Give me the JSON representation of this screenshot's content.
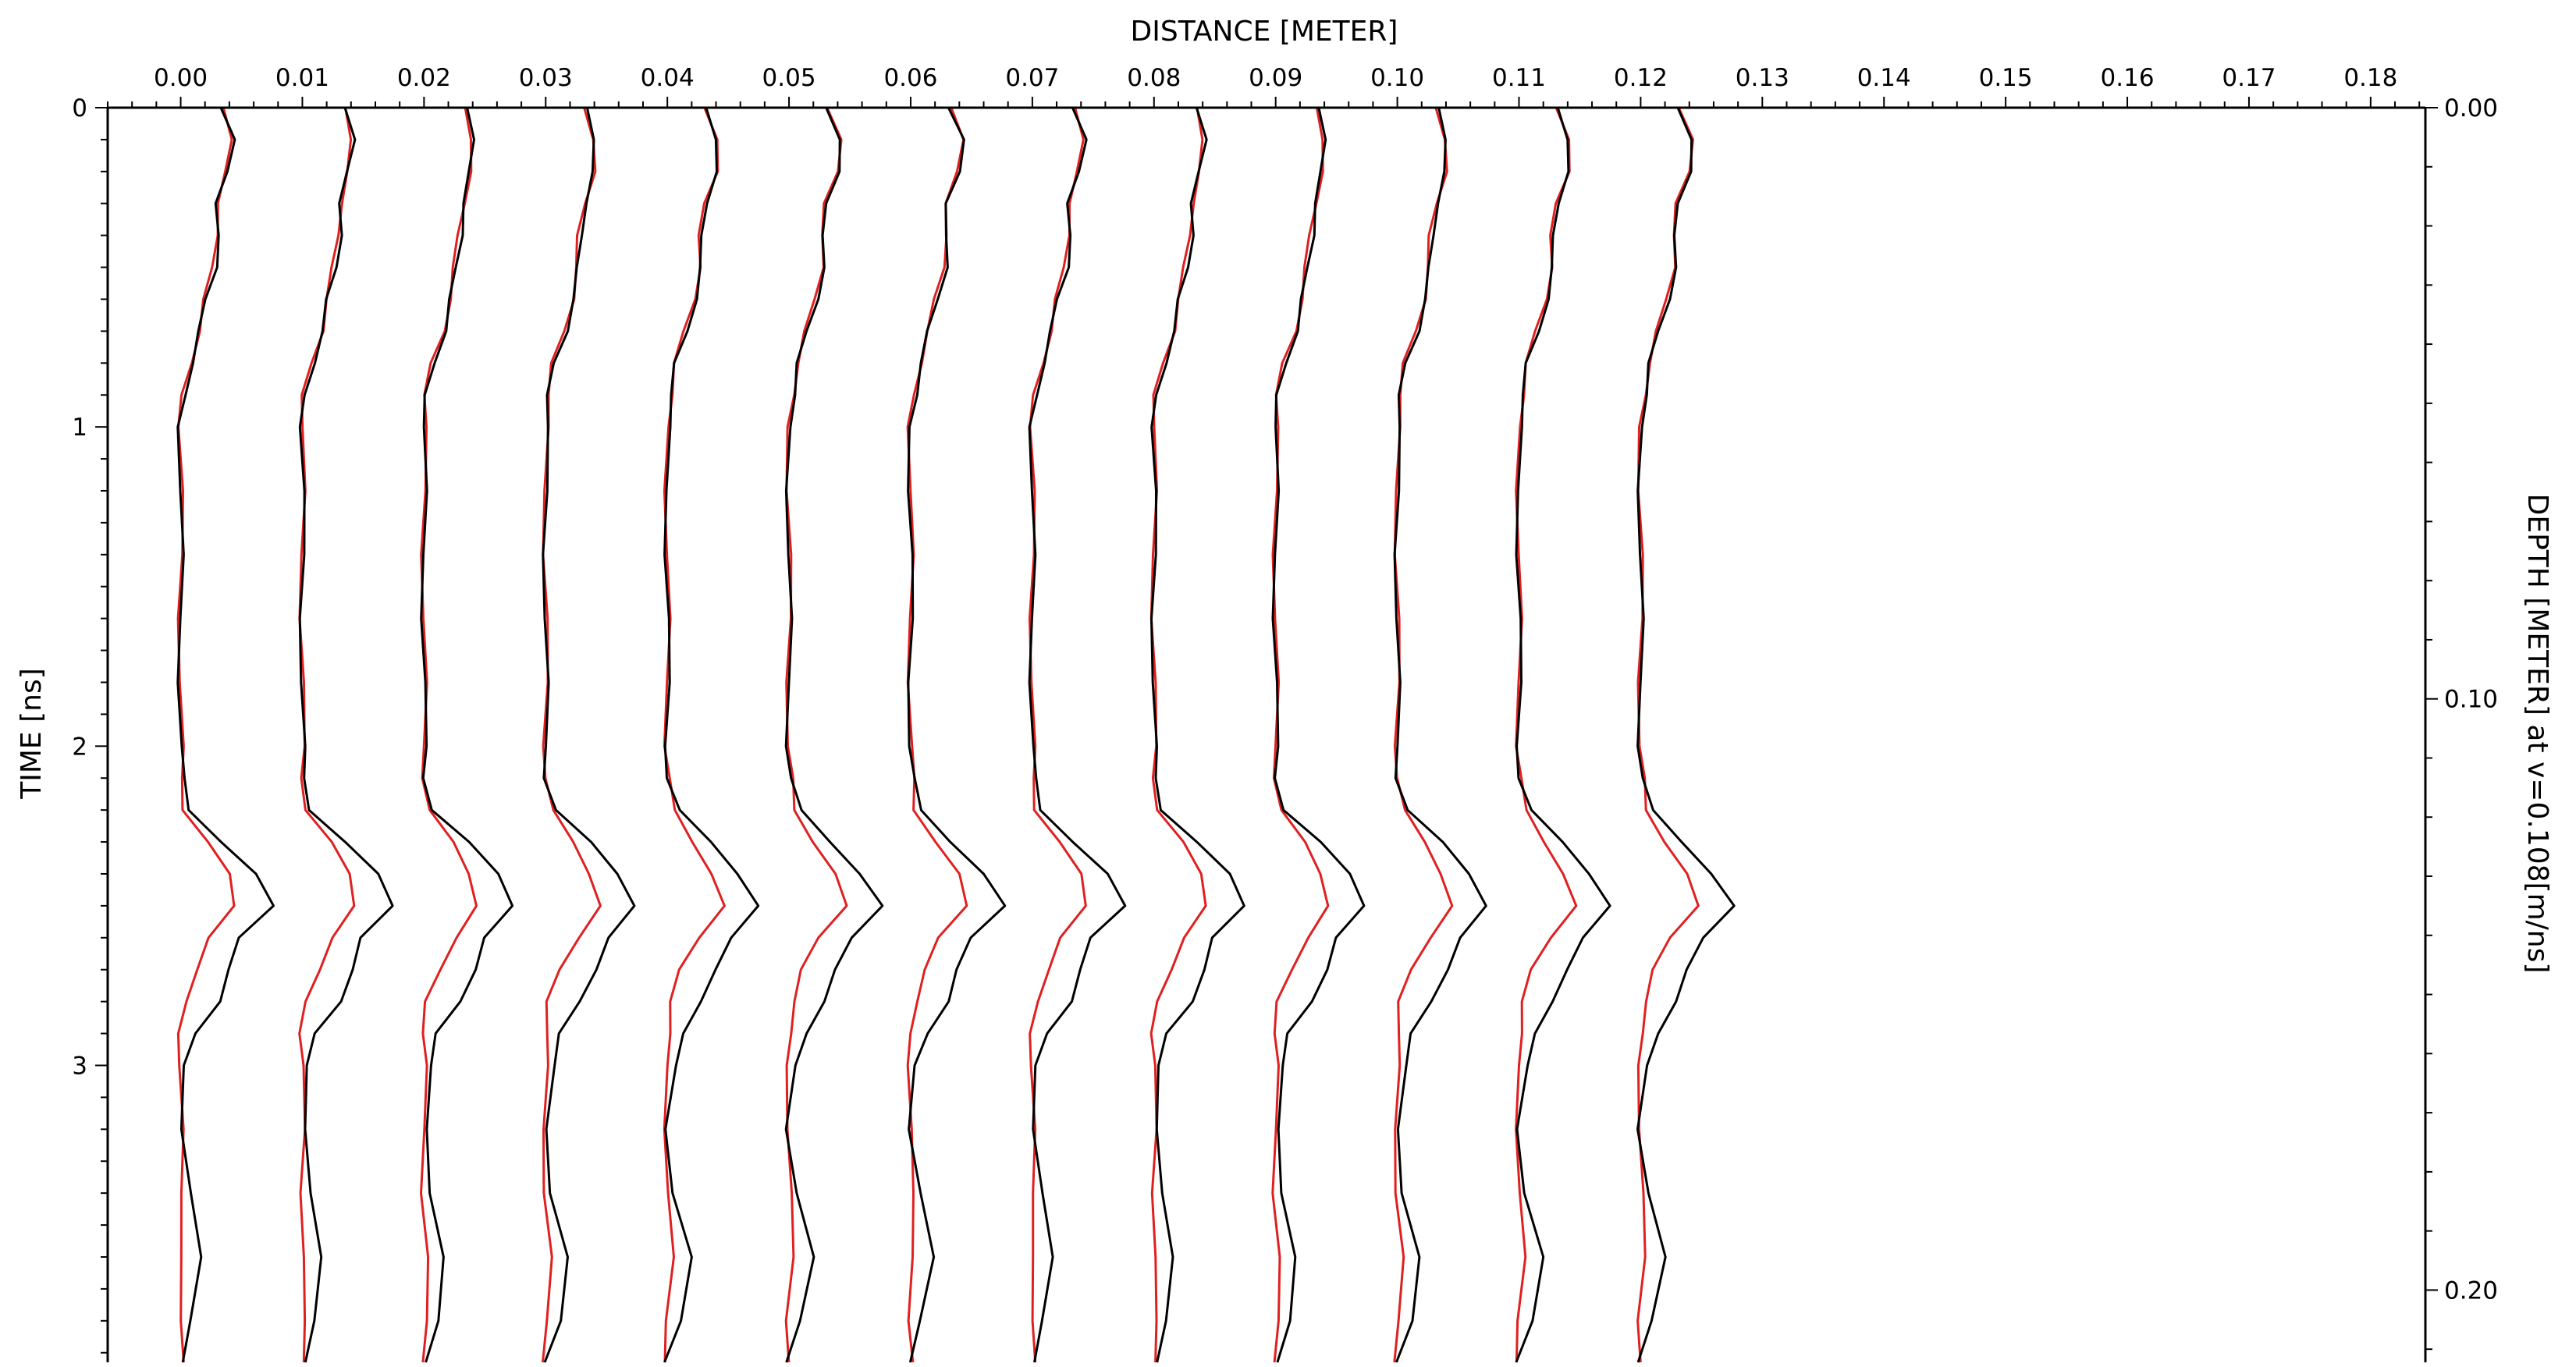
{
  "chart_data": {
    "type": "line",
    "subtype": "radargram-wiggle-traces",
    "x_axis_title": "DISTANCE [METER]",
    "left_axis_title": "TIME [ns]",
    "right_axis_title": "DEPTH [METER] at v=0.108[m/ns]",
    "x_ticks": [
      "0.00",
      "0.01",
      "0.02",
      "0.03",
      "0.04",
      "0.05",
      "0.06",
      "0.07",
      "0.08",
      "0.09",
      "0.10",
      "0.11",
      "0.12",
      "0.13",
      "0.14",
      "0.15",
      "0.16",
      "0.17",
      "0.18"
    ],
    "time_ticks": [
      "0",
      "1",
      "2",
      "3"
    ],
    "depth_ticks": [
      "0.00",
      "0.10",
      "0.20"
    ],
    "xlim": [
      -0.006,
      0.1845
    ],
    "time_range_ns": [
      0,
      3.93
    ],
    "depth_per_ns_m": 0.054,
    "colors": {
      "trace_black": "#000000",
      "trace_red": "#e02020",
      "axis": "#000000"
    },
    "trace_positions_m": [
      0.0,
      0.01,
      0.02,
      0.03,
      0.04,
      0.05,
      0.06,
      0.07,
      0.08,
      0.09,
      0.1,
      0.11,
      0.12
    ],
    "trace_samples_ns": [
      0.0,
      0.1,
      0.2,
      0.3,
      0.4,
      0.5,
      0.6,
      0.7,
      0.8,
      0.9,
      1.0,
      1.2,
      1.4,
      1.6,
      1.8,
      2.0,
      2.1,
      2.2,
      2.3,
      2.4,
      2.5,
      2.6,
      2.7,
      2.8,
      2.9,
      3.0,
      3.2,
      3.4,
      3.6,
      3.8,
      3.93
    ],
    "series": [
      {
        "name": "",
        "color": "#000000",
        "offsets_m": [
          0.0033,
          0.0042,
          0.0039,
          0.0031,
          0.003,
          0.0028,
          0.0022,
          0.0016,
          0.0008,
          0.0003,
          0.0,
          0.0,
          0.0,
          0.0,
          0.0,
          0.0,
          0.0001,
          0.0008,
          0.0035,
          0.006,
          0.0075,
          0.005,
          0.004,
          0.003,
          0.0012,
          0.0005,
          0.0,
          0.0006,
          0.0018,
          0.001,
          0.0
        ]
      },
      {
        "name": "",
        "color": "#e02020",
        "offsets_m": [
          0.0033,
          0.0041,
          0.0039,
          0.0031,
          0.0028,
          0.0026,
          0.0021,
          0.0015,
          0.0007,
          0.0002,
          0.0,
          0.0,
          0.0,
          0.0,
          0.0,
          0.0,
          0.0001,
          0.0004,
          0.0022,
          0.0038,
          0.0045,
          0.0025,
          0.0012,
          0.0003,
          0.0,
          0.0,
          0.0,
          0.0,
          0.0003,
          0.0,
          0.0
        ]
      }
    ]
  }
}
